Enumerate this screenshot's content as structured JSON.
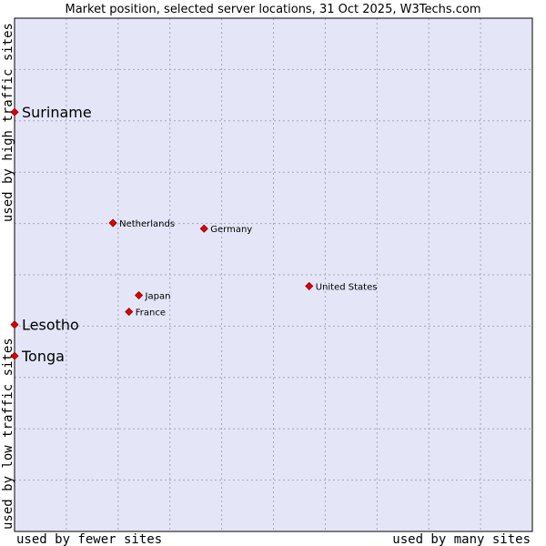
{
  "chart_data": {
    "type": "scatter",
    "title": "Market position, selected server locations, 31 Oct 2025, W3Techs.com",
    "xlabel_left": "used by fewer sites",
    "xlabel_right": "used by many sites",
    "ylabel_bottom": "used by low traffic sites",
    "ylabel_top": "used by high traffic sites",
    "xlim": [
      0,
      100
    ],
    "ylim": [
      0,
      100
    ],
    "grid": true,
    "colors": {
      "plot_bg": "#e4e6f8",
      "grid": "#a6a6b8",
      "marker": "#e00000",
      "marker_edge": "#8a0000"
    },
    "points": [
      {
        "name": "Suriname",
        "x": 0,
        "y": 81.7,
        "highlight": true
      },
      {
        "name": "Lesotho",
        "x": 0,
        "y": 40.3,
        "highlight": true
      },
      {
        "name": "Tonga",
        "x": 0,
        "y": 34.2,
        "highlight": true
      },
      {
        "name": "Netherlands",
        "x": 19.0,
        "y": 60.1,
        "highlight": false
      },
      {
        "name": "Germany",
        "x": 36.6,
        "y": 59.0,
        "highlight": false
      },
      {
        "name": "United States",
        "x": 56.9,
        "y": 47.8,
        "highlight": false
      },
      {
        "name": "Japan",
        "x": 24.0,
        "y": 46.0,
        "highlight": false
      },
      {
        "name": "France",
        "x": 22.1,
        "y": 42.8,
        "highlight": false
      }
    ]
  }
}
